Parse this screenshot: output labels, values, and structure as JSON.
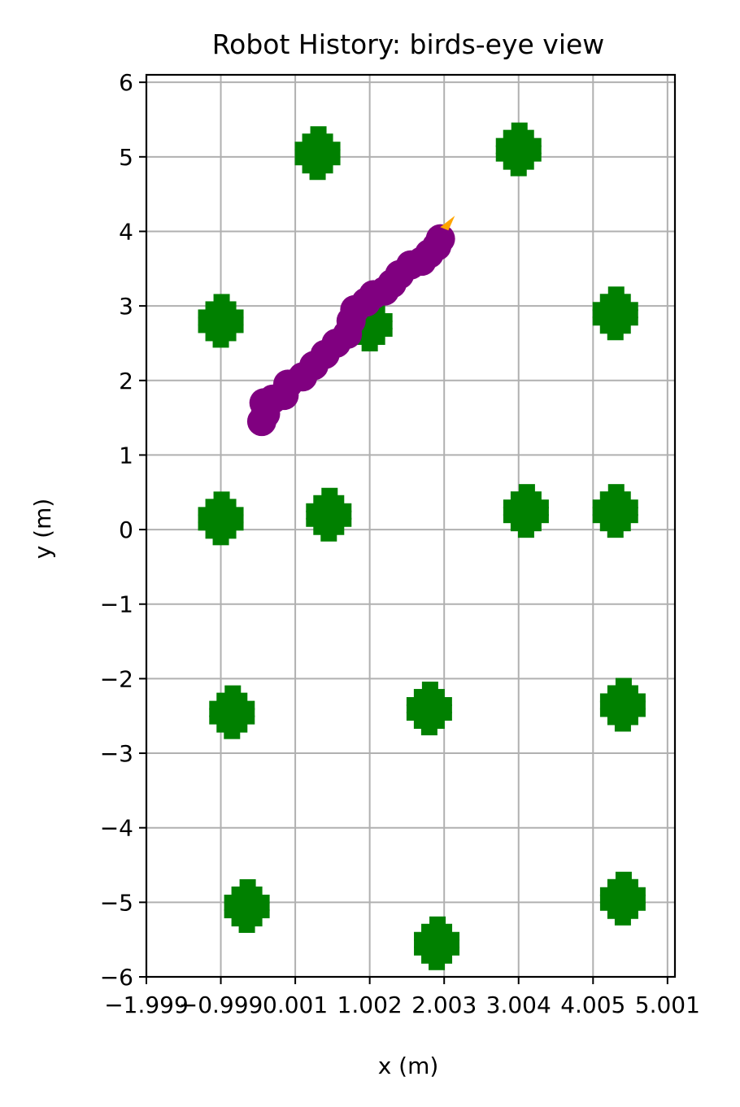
{
  "chart_data": {
    "type": "scatter",
    "title": "Robot History: birds-eye view",
    "xlabel": "x (m)",
    "ylabel": "y (m)",
    "xlim": [
      -2.0,
      5.1
    ],
    "ylim": [
      -6.0,
      6.1
    ],
    "grid": true,
    "x_ticks": [
      {
        "value": -2,
        "label": "−1.999"
      },
      {
        "value": -1,
        "label": "−0.999"
      },
      {
        "value": 0,
        "label": "0.001"
      },
      {
        "value": 1,
        "label": "1.002"
      },
      {
        "value": 2,
        "label": "2.003"
      },
      {
        "value": 3,
        "label": "3.004"
      },
      {
        "value": 4,
        "label": "4.005"
      },
      {
        "value": 5,
        "label": "5.001"
      }
    ],
    "y_ticks": [
      {
        "value": -6,
        "label": "−6"
      },
      {
        "value": -5,
        "label": "−5"
      },
      {
        "value": -4,
        "label": "−4"
      },
      {
        "value": -3,
        "label": "−3"
      },
      {
        "value": -2,
        "label": "−2"
      },
      {
        "value": -1,
        "label": "−1"
      },
      {
        "value": 0,
        "label": "0"
      },
      {
        "value": 1,
        "label": "1"
      },
      {
        "value": 2,
        "label": "2"
      },
      {
        "value": 3,
        "label": "3"
      },
      {
        "value": 4,
        "label": "4"
      },
      {
        "value": 5,
        "label": "5"
      },
      {
        "value": 6,
        "label": "6"
      }
    ],
    "colors": {
      "obstacle": "#008000",
      "path": "#800080",
      "heading": "#ffa500",
      "grid": "#b0b0b0",
      "axes": "#000000"
    },
    "series": [
      {
        "kind": "obstacles",
        "color": "#008000",
        "points": [
          {
            "x": 0.3,
            "y": 5.05
          },
          {
            "x": 3.0,
            "y": 5.1
          },
          {
            "x": -1.0,
            "y": 2.8
          },
          {
            "x": 1.0,
            "y": 2.75
          },
          {
            "x": 4.3,
            "y": 2.9
          },
          {
            "x": -1.0,
            "y": 0.15
          },
          {
            "x": 0.45,
            "y": 0.2
          },
          {
            "x": 3.1,
            "y": 0.25
          },
          {
            "x": 4.3,
            "y": 0.25
          },
          {
            "x": -0.85,
            "y": -2.45
          },
          {
            "x": 1.8,
            "y": -2.4
          },
          {
            "x": 4.4,
            "y": -2.35
          },
          {
            "x": -0.65,
            "y": -5.05
          },
          {
            "x": 1.9,
            "y": -5.55
          },
          {
            "x": 4.4,
            "y": -4.95
          }
        ]
      },
      {
        "kind": "path",
        "color": "#800080",
        "points": [
          {
            "x": -0.45,
            "y": 1.45
          },
          {
            "x": -0.4,
            "y": 1.55
          },
          {
            "x": -0.42,
            "y": 1.7
          },
          {
            "x": -0.3,
            "y": 1.75
          },
          {
            "x": -0.15,
            "y": 1.8
          },
          {
            "x": -0.1,
            "y": 1.95
          },
          {
            "x": 0.1,
            "y": 2.05
          },
          {
            "x": 0.25,
            "y": 2.2
          },
          {
            "x": 0.4,
            "y": 2.35
          },
          {
            "x": 0.55,
            "y": 2.5
          },
          {
            "x": 0.7,
            "y": 2.62
          },
          {
            "x": 0.75,
            "y": 2.8
          },
          {
            "x": 0.8,
            "y": 2.95
          },
          {
            "x": 0.95,
            "y": 3.05
          },
          {
            "x": 1.05,
            "y": 3.15
          },
          {
            "x": 1.2,
            "y": 3.2
          },
          {
            "x": 1.3,
            "y": 3.3
          },
          {
            "x": 1.4,
            "y": 3.42
          },
          {
            "x": 1.55,
            "y": 3.55
          },
          {
            "x": 1.7,
            "y": 3.6
          },
          {
            "x": 1.8,
            "y": 3.7
          },
          {
            "x": 1.9,
            "y": 3.8
          },
          {
            "x": 1.95,
            "y": 3.9
          }
        ]
      },
      {
        "kind": "heading",
        "color": "#ffa500",
        "points": [
          {
            "x": 2.1,
            "y": 4.1
          }
        ]
      }
    ]
  }
}
